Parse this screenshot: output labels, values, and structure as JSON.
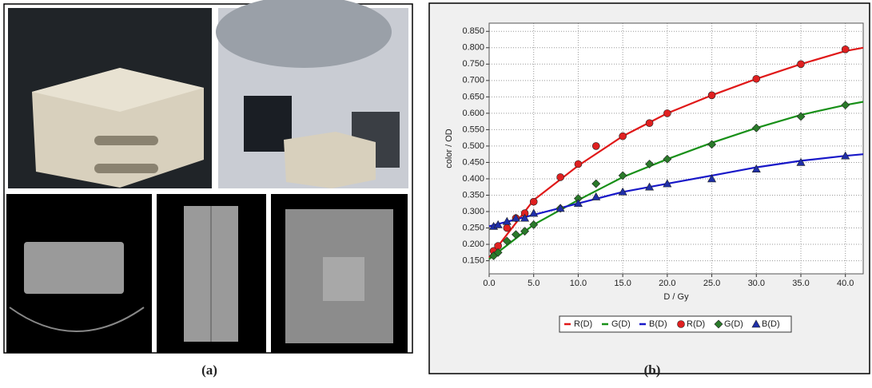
{
  "captions": [
    "(a)",
    "(b)"
  ],
  "chart_data": {
    "type": "line",
    "x_label": "D / Gy",
    "y_label": "color / OD",
    "xlim": [
      0,
      42
    ],
    "ylim": [
      0.11,
      0.875
    ],
    "xticks": [
      {
        "value": 0,
        "label": "0.0"
      },
      {
        "value": 5,
        "label": "5.0"
      },
      {
        "value": 10,
        "label": "10.0"
      },
      {
        "value": 15,
        "label": "15.0"
      },
      {
        "value": 20,
        "label": "20.0"
      },
      {
        "value": 25,
        "label": "25.0"
      },
      {
        "value": 30,
        "label": "30.0"
      },
      {
        "value": 35,
        "label": "35.0"
      },
      {
        "value": 40,
        "label": "40.0"
      }
    ],
    "yticks": [
      {
        "value": 0.15,
        "label": "0.150"
      },
      {
        "value": 0.2,
        "label": "0.200"
      },
      {
        "value": 0.25,
        "label": "0.250"
      },
      {
        "value": 0.3,
        "label": "0.300"
      },
      {
        "value": 0.35,
        "label": "0.350"
      },
      {
        "value": 0.4,
        "label": "0.400"
      },
      {
        "value": 0.45,
        "label": "0.450"
      },
      {
        "value": 0.5,
        "label": "0.500"
      },
      {
        "value": 0.55,
        "label": "0.550"
      },
      {
        "value": 0.6,
        "label": "0.600"
      },
      {
        "value": 0.65,
        "label": "0.650"
      },
      {
        "value": 0.7,
        "label": "0.700"
      },
      {
        "value": 0.75,
        "label": "0.750"
      },
      {
        "value": 0.8,
        "label": "0.800"
      },
      {
        "value": 0.85,
        "label": "0.850"
      }
    ],
    "grid": true,
    "series": [
      {
        "name": "R(D)",
        "style": "line",
        "color": "#e01818",
        "x": [
          0,
          5,
          10,
          15,
          20,
          25,
          30,
          35,
          40,
          42
        ],
        "values": [
          0.16,
          0.335,
          0.44,
          0.53,
          0.6,
          0.655,
          0.705,
          0.75,
          0.79,
          0.8
        ]
      },
      {
        "name": "G(D)",
        "style": "line",
        "color": "#189018",
        "x": [
          0,
          5,
          10,
          15,
          20,
          25,
          30,
          35,
          40,
          42
        ],
        "values": [
          0.155,
          0.26,
          0.335,
          0.405,
          0.46,
          0.51,
          0.555,
          0.595,
          0.625,
          0.635
        ]
      },
      {
        "name": "B(D)",
        "style": "line",
        "color": "#1818c8",
        "x": [
          0,
          5,
          10,
          15,
          20,
          25,
          30,
          35,
          40,
          42
        ],
        "values": [
          0.255,
          0.29,
          0.325,
          0.36,
          0.385,
          0.41,
          0.435,
          0.455,
          0.47,
          0.475
        ]
      },
      {
        "name": "R(D)",
        "style": "marker",
        "marker": "circle",
        "color": "#e02020",
        "x": [
          0.5,
          1,
          2,
          3,
          4,
          5,
          8,
          10,
          12,
          15,
          18,
          20,
          25,
          30,
          35,
          40
        ],
        "values": [
          0.18,
          0.195,
          0.25,
          0.28,
          0.295,
          0.33,
          0.405,
          0.445,
          0.5,
          0.53,
          0.57,
          0.6,
          0.655,
          0.705,
          0.75,
          0.795
        ]
      },
      {
        "name": "G(D)",
        "style": "marker",
        "marker": "diamond",
        "color": "#2a7a2a",
        "x": [
          0.5,
          1,
          2,
          3,
          4,
          5,
          8,
          10,
          12,
          15,
          18,
          20,
          25,
          30,
          35,
          40
        ],
        "values": [
          0.165,
          0.175,
          0.21,
          0.23,
          0.24,
          0.26,
          0.31,
          0.34,
          0.385,
          0.41,
          0.445,
          0.46,
          0.505,
          0.555,
          0.59,
          0.625
        ]
      },
      {
        "name": "B(D)",
        "style": "marker",
        "marker": "triangle",
        "color": "#1f2fa8",
        "x": [
          0.5,
          1,
          2,
          3,
          4,
          5,
          8,
          10,
          12,
          15,
          18,
          20,
          25,
          30,
          35,
          40
        ],
        "values": [
          0.255,
          0.26,
          0.27,
          0.28,
          0.28,
          0.295,
          0.31,
          0.325,
          0.345,
          0.36,
          0.375,
          0.385,
          0.4,
          0.43,
          0.45,
          0.47
        ]
      }
    ]
  }
}
